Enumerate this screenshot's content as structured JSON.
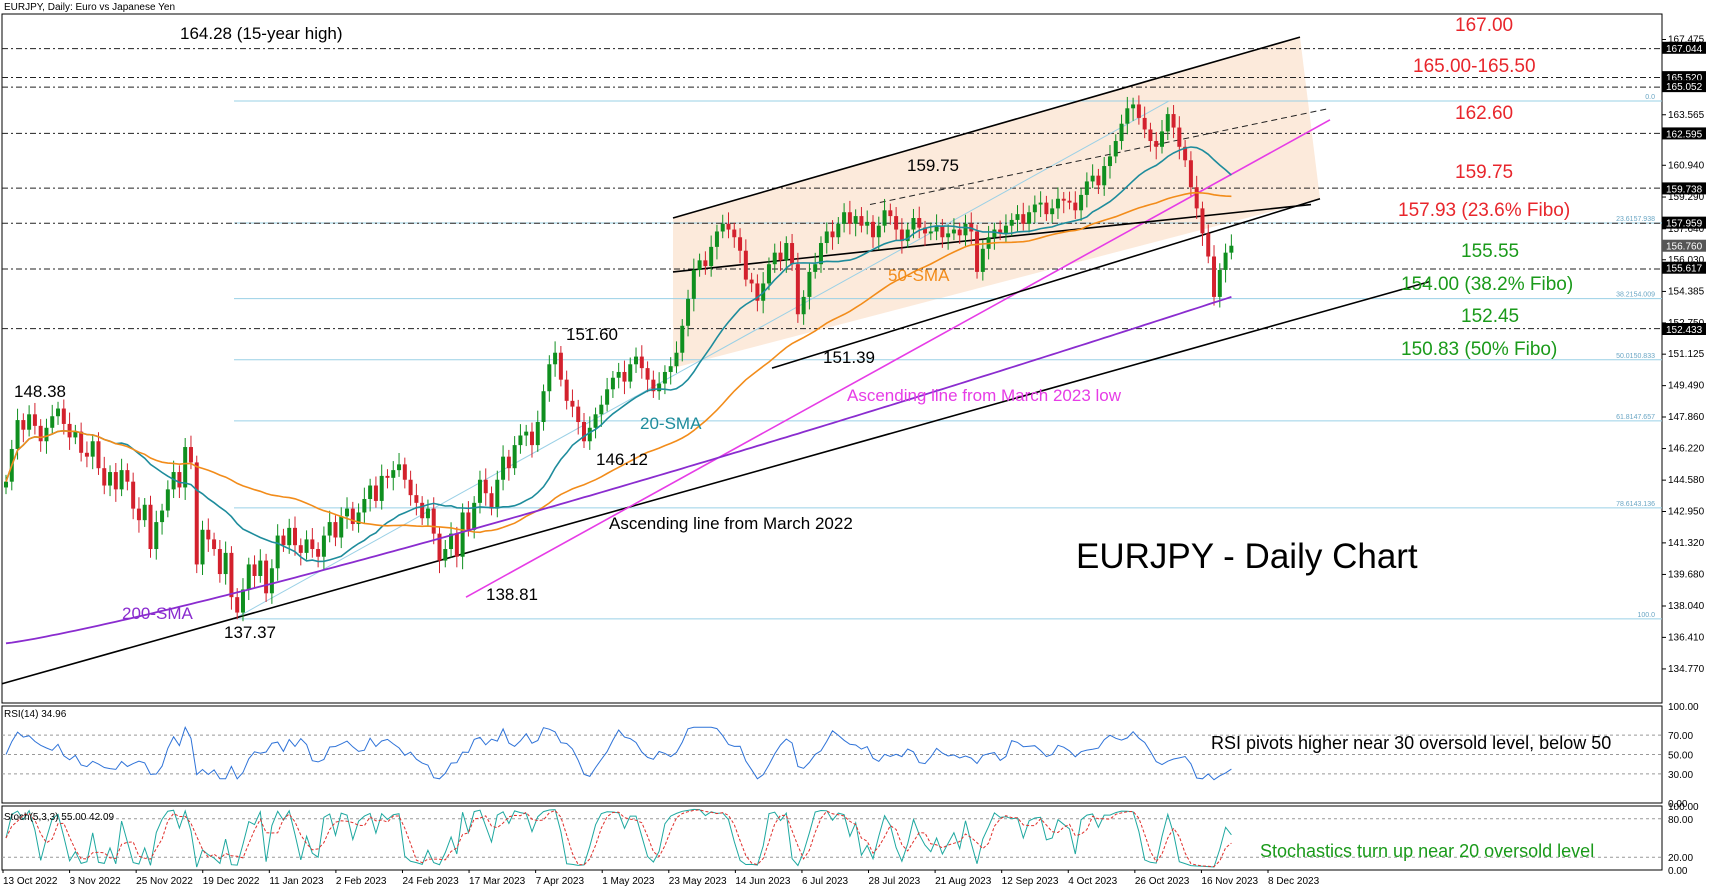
{
  "header": {
    "symbol_info": "EURJPY, Daily:  Euro vs Japanese Yen",
    "big_title": "EURJPY - Daily Chart"
  },
  "chart_data": [
    {
      "type": "candlestick",
      "title": "EURJPY, Daily:  Euro vs Japanese Yen",
      "ylim": [
        133.0,
        168.8
      ],
      "x_ticks": [
        "13 Oct 2022",
        "3 Nov 2022",
        "25 Nov 2022",
        "19 Dec 2022",
        "11 Jan 2023",
        "2 Feb 2023",
        "24 Feb 2023",
        "17 Mar 2023",
        "7 Apr 2023",
        "1 May 2023",
        "23 May 2023",
        "14 Jun 2023",
        "6 Jul 2023",
        "28 Jul 2023",
        "21 Aug 2023",
        "12 Sep 2023",
        "4 Oct 2023",
        "26 Oct 2023",
        "16 Nov 2023",
        "8 Dec 2023"
      ],
      "y_ticks": [
        "167.475",
        "165.520",
        "163.565",
        "162.595",
        "160.940",
        "159.290",
        "157.640",
        "156.030",
        "154.385",
        "152.750",
        "151.125",
        "149.490",
        "147.860",
        "146.220",
        "144.580",
        "142.950",
        "141.320",
        "139.680",
        "138.040",
        "136.410",
        "134.770"
      ],
      "price_tags": [
        {
          "label": "167.044",
          "value": 167.044
        },
        {
          "label": "165.520",
          "value": 165.52
        },
        {
          "label": "165.052",
          "value": 165.052
        },
        {
          "label": "162.595",
          "value": 162.595
        },
        {
          "label": "159.738",
          "value": 159.738
        },
        {
          "label": "157.959",
          "value": 157.959
        },
        {
          "label": "156.760",
          "value": 156.76,
          "current": true
        },
        {
          "label": "155.617",
          "value": 155.617
        },
        {
          "label": "152.433",
          "value": 152.433
        }
      ],
      "fib_levels": [
        {
          "label": "0.0",
          "value": 164.28
        },
        {
          "label": "23.6157.938",
          "value": 157.938
        },
        {
          "label": "38.2154.009",
          "value": 154.009
        },
        {
          "label": "50.0150.833",
          "value": 150.833
        },
        {
          "label": "61.8147.657",
          "value": 147.657
        },
        {
          "label": "78.6143.136",
          "value": 143.136
        },
        {
          "label": "100.0",
          "value": 137.37
        }
      ],
      "horizontal_levels": [
        167.0,
        165.5,
        165.0,
        162.6,
        159.75,
        157.93,
        155.55,
        152.45
      ],
      "annotations": [
        {
          "text": "167.00",
          "color": "#e8262c"
        },
        {
          "text": "165.00-165.50",
          "color": "#e8262c"
        },
        {
          "text": "162.60",
          "color": "#e8262c"
        },
        {
          "text": "159.75",
          "color": "#e8262c"
        },
        {
          "text": "157.93 (23.6% Fibo)",
          "color": "#e8262c"
        },
        {
          "text": "155.55",
          "color": "#1a9a1a"
        },
        {
          "text": "154.00 (38.2% Fibo)",
          "color": "#1a9a1a"
        },
        {
          "text": "152.45",
          "color": "#1a9a1a"
        },
        {
          "text": "150.83 (50% Fibo)",
          "color": "#1a9a1a"
        }
      ],
      "labels": {
        "high_15y": "164.28 (15-year high)",
        "p159_75": "159.75",
        "p151_60": "151.60",
        "p151_39": "151.39",
        "p148_38": "148.38",
        "p146_12": "146.12",
        "p138_81": "138.81",
        "p137_37": "137.37",
        "sma50": "50-SMA",
        "sma20": "20-SMA",
        "sma200": "200-SMA",
        "line_march_2023": "Ascending line from March 2023 low",
        "line_march_2022": "Ascending line from March 2022"
      },
      "series_colors": {
        "sma20": "#1e8c9c",
        "sma50": "#f28c1a",
        "sma200": "#8a2ccf",
        "march2023_line": "#e63ce6",
        "candle_up": "#0f8f1f",
        "candle_down": "#d3212d"
      },
      "series": [
        {
          "name": "Close",
          "points": [
            [
              0,
              144.5
            ],
            [
              1,
              146.2
            ],
            [
              2,
              147.7
            ],
            [
              3,
              147.2
            ],
            [
              4,
              148.0
            ],
            [
              5,
              147.4
            ],
            [
              6,
              146.6
            ],
            [
              7,
              147.3
            ],
            [
              8,
              147.9
            ],
            [
              9,
              148.3
            ],
            [
              10,
              147.5
            ],
            [
              11,
              146.8
            ],
            [
              12,
              147.1
            ],
            [
              13,
              146.0
            ],
            [
              14,
              145.8
            ],
            [
              15,
              146.6
            ],
            [
              16,
              145.2
            ],
            [
              17,
              144.3
            ],
            [
              18,
              145.0
            ],
            [
              19,
              144.1
            ],
            [
              20,
              145.1
            ],
            [
              21,
              144.5
            ],
            [
              22,
              143.1
            ],
            [
              23,
              142.5
            ],
            [
              24,
              143.3
            ],
            [
              25,
              141.0
            ],
            [
              26,
              142.4
            ],
            [
              27,
              143.0
            ],
            [
              28,
              144.1
            ],
            [
              29,
              145.0
            ],
            [
              30,
              144.2
            ],
            [
              31,
              146.3
            ],
            [
              32,
              145.5
            ],
            [
              33,
              140.2
            ],
            [
              34,
              142.0
            ],
            [
              35,
              141.5
            ],
            [
              36,
              141.0
            ],
            [
              37,
              139.7
            ],
            [
              38,
              140.8
            ],
            [
              39,
              138.5
            ],
            [
              40,
              137.7
            ],
            [
              41,
              138.9
            ],
            [
              42,
              140.2
            ],
            [
              43,
              139.6
            ],
            [
              44,
              140.4
            ],
            [
              45,
              138.7
            ],
            [
              46,
              140.0
            ],
            [
              47,
              141.7
            ],
            [
              48,
              141.2
            ],
            [
              49,
              142.1
            ],
            [
              50,
              141.2
            ],
            [
              51,
              140.8
            ],
            [
              52,
              141.5
            ],
            [
              53,
              141.0
            ],
            [
              54,
              140.6
            ],
            [
              55,
              141.7
            ],
            [
              56,
              142.4
            ],
            [
              57,
              141.6
            ],
            [
              58,
              142.7
            ],
            [
              59,
              143.1
            ],
            [
              60,
              142.3
            ],
            [
              61,
              142.9
            ],
            [
              62,
              143.6
            ],
            [
              63,
              144.3
            ],
            [
              64,
              143.5
            ],
            [
              65,
              144.8
            ],
            [
              66,
              144.7
            ],
            [
              67,
              145.1
            ],
            [
              68,
              145.4
            ],
            [
              69,
              144.6
            ],
            [
              70,
              143.8
            ],
            [
              71,
              143.4
            ],
            [
              72,
              142.6
            ],
            [
              73,
              143.1
            ],
            [
              74,
              141.8
            ],
            [
              75,
              140.4
            ],
            [
              76,
              141.0
            ],
            [
              77,
              141.8
            ],
            [
              78,
              140.6
            ],
            [
              79,
              142.9
            ],
            [
              80,
              142.0
            ],
            [
              81,
              143.4
            ],
            [
              82,
              144.6
            ],
            [
              83,
              143.9
            ],
            [
              84,
              143.1
            ],
            [
              85,
              144.6
            ],
            [
              86,
              145.8
            ],
            [
              87,
              145.2
            ],
            [
              88,
              146.4
            ],
            [
              89,
              146.9
            ],
            [
              90,
              147.1
            ],
            [
              91,
              146.4
            ],
            [
              92,
              147.6
            ],
            [
              93,
              149.2
            ],
            [
              94,
              150.6
            ],
            [
              95,
              151.2
            ],
            [
              96,
              149.8
            ],
            [
              97,
              148.7
            ],
            [
              98,
              148.4
            ],
            [
              99,
              147.6
            ],
            [
              100,
              146.6
            ],
            [
              101,
              147.3
            ],
            [
              102,
              148.0
            ],
            [
              103,
              148.5
            ],
            [
              104,
              149.3
            ],
            [
              105,
              149.9
            ],
            [
              106,
              150.2
            ],
            [
              107,
              149.7
            ],
            [
              108,
              150.6
            ],
            [
              109,
              151.0
            ],
            [
              110,
              150.4
            ],
            [
              111,
              149.8
            ],
            [
              112,
              149.2
            ],
            [
              113,
              149.6
            ],
            [
              114,
              150.2
            ],
            [
              115,
              150.5
            ],
            [
              116,
              151.2
            ],
            [
              117,
              152.6
            ],
            [
              118,
              154.0
            ],
            [
              119,
              155.5
            ],
            [
              120,
              156.0
            ],
            [
              121,
              155.7
            ],
            [
              122,
              156.7
            ],
            [
              123,
              157.5
            ],
            [
              124,
              157.9
            ],
            [
              125,
              157.6
            ],
            [
              126,
              157.2
            ],
            [
              127,
              156.5
            ],
            [
              128,
              155.0
            ],
            [
              129,
              154.8
            ],
            [
              130,
              153.9
            ],
            [
              131,
              154.8
            ],
            [
              132,
              155.8
            ],
            [
              133,
              156.4
            ],
            [
              134,
              156.0
            ],
            [
              135,
              156.9
            ],
            [
              136,
              155.8
            ],
            [
              137,
              153.2
            ],
            [
              138,
              154.1
            ],
            [
              139,
              155.4
            ],
            [
              140,
              155.8
            ],
            [
              141,
              156.9
            ],
            [
              142,
              157.5
            ],
            [
              143,
              157.2
            ],
            [
              144,
              157.9
            ],
            [
              145,
              158.5
            ],
            [
              146,
              157.9
            ],
            [
              147,
              158.3
            ],
            [
              148,
              157.8
            ],
            [
              149,
              158.0
            ],
            [
              150,
              157.2
            ],
            [
              151,
              157.8
            ],
            [
              152,
              158.6
            ],
            [
              153,
              158.3
            ],
            [
              154,
              157.6
            ],
            [
              155,
              157.0
            ],
            [
              156,
              157.6
            ],
            [
              157,
              158.2
            ],
            [
              158,
              157.7
            ],
            [
              159,
              157.4
            ],
            [
              160,
              157.5
            ],
            [
              161,
              157.8
            ],
            [
              162,
              157.2
            ],
            [
              163,
              157.4
            ],
            [
              164,
              157.6
            ],
            [
              165,
              157.3
            ],
            [
              166,
              157.9
            ],
            [
              167,
              157.5
            ],
            [
              168,
              155.4
            ],
            [
              169,
              156.6
            ],
            [
              170,
              157.2
            ],
            [
              171,
              157.6
            ],
            [
              172,
              157.4
            ],
            [
              173,
              157.8
            ],
            [
              174,
              158.1
            ],
            [
              175,
              158.4
            ],
            [
              176,
              157.9
            ],
            [
              177,
              158.5
            ],
            [
              178,
              158.9
            ],
            [
              179,
              159.0
            ],
            [
              180,
              158.4
            ],
            [
              181,
              158.7
            ],
            [
              182,
              159.2
            ],
            [
              183,
              159.1
            ],
            [
              184,
              159.0
            ],
            [
              185,
              158.6
            ],
            [
              186,
              159.4
            ],
            [
              187,
              160.1
            ],
            [
              188,
              160.4
            ],
            [
              189,
              159.9
            ],
            [
              190,
              160.9
            ],
            [
              191,
              161.4
            ],
            [
              192,
              162.2
            ],
            [
              193,
              163.1
            ],
            [
              194,
              163.9
            ],
            [
              195,
              164.1
            ],
            [
              196,
              163.4
            ],
            [
              197,
              162.8
            ],
            [
              198,
              162.2
            ],
            [
              199,
              161.9
            ],
            [
              200,
              162.7
            ],
            [
              201,
              163.6
            ],
            [
              202,
              162.9
            ],
            [
              203,
              161.9
            ],
            [
              204,
              161.2
            ],
            [
              205,
              159.8
            ],
            [
              206,
              158.7
            ],
            [
              207,
              157.4
            ],
            [
              208,
              156.2
            ],
            [
              209,
              154.1
            ],
            [
              210,
              155.5
            ],
            [
              211,
              156.4
            ],
            [
              212,
              156.76
            ]
          ]
        },
        {
          "name": "RSI(14)",
          "ylim": [
            0,
            100
          ],
          "ticks": [
            30,
            50,
            70,
            100
          ],
          "current": "34.96",
          "label": "RSI(14) 34.96"
        },
        {
          "name": "Stoch(5,3,3)",
          "ylim": [
            0,
            100
          ],
          "ticks": [
            0,
            20,
            80,
            100
          ],
          "current": "55.00 42.09",
          "label": "Stoch(5,3,3) 55.00 42.09"
        }
      ],
      "rsi_axis": [
        "100.00",
        "70.00",
        "50.00",
        "30.00",
        "0.00"
      ],
      "stoch_axis": [
        "100.00",
        "80.00",
        "20.00",
        "0.00"
      ],
      "rsi_note": "RSI pivots higher near 30 oversold level, below 50",
      "stoch_note": "Stochastics turn up near 20 oversold level"
    }
  ]
}
